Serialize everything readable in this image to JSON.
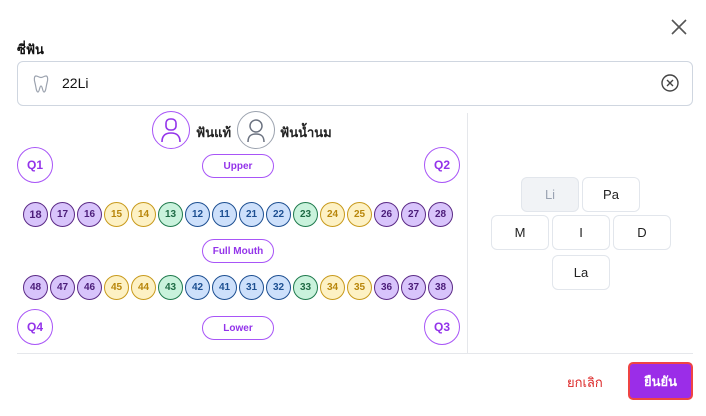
{
  "field_label": "ซี่ฟัน",
  "input": {
    "value": "22Li",
    "icon": "tooth-icon",
    "clear_icon": "clear-circle-icon"
  },
  "dentition": {
    "permanent_label": "ฟันแท้",
    "primary_label": "ฟันน้ำนม",
    "selected": "permanent"
  },
  "quadrants": {
    "q1": "Q1",
    "q2": "Q2",
    "q3": "Q3",
    "q4": "Q4"
  },
  "arches": {
    "upper": "Upper",
    "full": "Full Mouth",
    "lower": "Lower"
  },
  "colors": {
    "purple": {
      "bg": "#d8c4fb",
      "border": "#5b2a86",
      "text": "#4c1d7a"
    },
    "yellow": {
      "bg": "#fdf1c4",
      "border": "#c89a1c",
      "text": "#b8860b"
    },
    "green": {
      "bg": "#c9f2dc",
      "border": "#1f7a4d",
      "text": "#1f6b45"
    },
    "blue": {
      "bg": "#cde0fb",
      "border": "#1d4f91",
      "text": "#1d4f91"
    },
    "accent": "#9b2de8"
  },
  "upper_teeth": [
    [
      "18",
      "purple"
    ],
    [
      "17",
      "purple"
    ],
    [
      "16",
      "purple"
    ],
    [
      "15",
      "yellow"
    ],
    [
      "14",
      "yellow"
    ],
    [
      "13",
      "green"
    ],
    [
      "12",
      "blue"
    ],
    [
      "11",
      "blue"
    ],
    [
      "21",
      "blue"
    ],
    [
      "22",
      "blue"
    ],
    [
      "23",
      "green"
    ],
    [
      "24",
      "yellow"
    ],
    [
      "25",
      "yellow"
    ],
    [
      "26",
      "purple"
    ],
    [
      "27",
      "purple"
    ],
    [
      "28",
      "purple"
    ]
  ],
  "lower_teeth": [
    [
      "48",
      "purple"
    ],
    [
      "47",
      "purple"
    ],
    [
      "46",
      "purple"
    ],
    [
      "45",
      "yellow"
    ],
    [
      "44",
      "yellow"
    ],
    [
      "43",
      "green"
    ],
    [
      "42",
      "blue"
    ],
    [
      "41",
      "blue"
    ],
    [
      "31",
      "blue"
    ],
    [
      "32",
      "blue"
    ],
    [
      "33",
      "green"
    ],
    [
      "34",
      "yellow"
    ],
    [
      "35",
      "yellow"
    ],
    [
      "36",
      "purple"
    ],
    [
      "37",
      "purple"
    ],
    [
      "38",
      "purple"
    ]
  ],
  "surfaces": {
    "li": "Li",
    "pa": "Pa",
    "m": "M",
    "i": "I",
    "d": "D",
    "la": "La",
    "selected": "Li"
  },
  "footer": {
    "cancel": "ยกเลิก",
    "confirm": "ยืนยัน"
  }
}
